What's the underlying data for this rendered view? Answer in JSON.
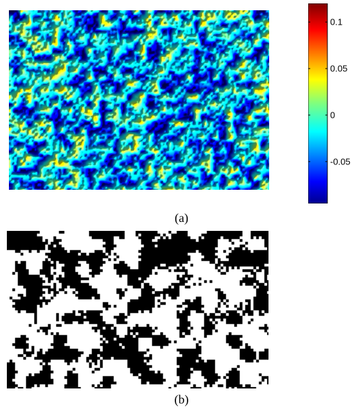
{
  "figure": {
    "panel_a": {
      "caption": "(a)",
      "colorbar": {
        "colormap": "jet",
        "min": -0.095,
        "max": 0.12,
        "ticks": [
          {
            "value": 0.1,
            "label": "0.1"
          },
          {
            "value": 0.05,
            "label": "0.05"
          },
          {
            "value": 0,
            "label": "0"
          },
          {
            "value": -0.05,
            "label": "-0.05"
          }
        ]
      }
    },
    "panel_b": {
      "caption": "(b)",
      "colors": {
        "foreground": "#000000",
        "background": "#ffffff"
      }
    }
  }
}
